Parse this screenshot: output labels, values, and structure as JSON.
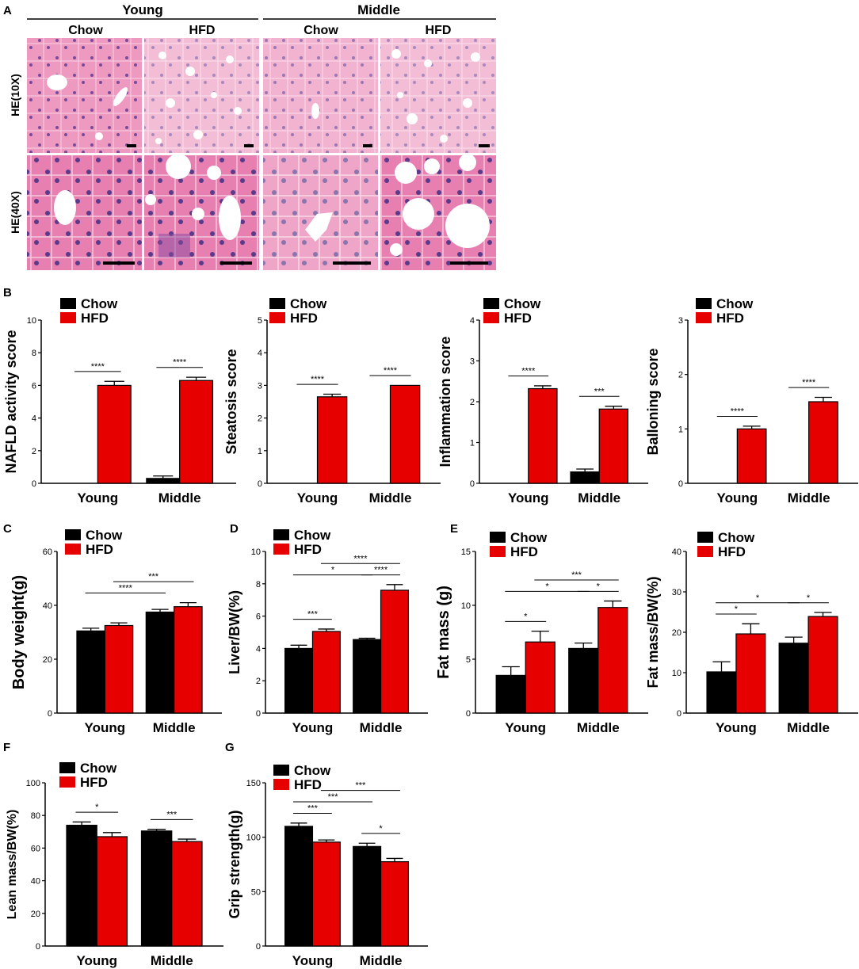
{
  "panel_letters": [
    "A",
    "B",
    "C",
    "D",
    "E",
    "F",
    "G"
  ],
  "histology": {
    "age_groups": [
      "Young",
      "Middle"
    ],
    "diets": [
      "Chow",
      "HFD"
    ],
    "row_labels": [
      "HE(10X)",
      "HE(40X)"
    ]
  },
  "legend": {
    "chow": "Chow",
    "hfd": "HFD"
  },
  "colors": {
    "chow": "#000000",
    "hfd": "#e60000",
    "tissue_pink": "#e27aa8",
    "tissue_light": "#f1c4da",
    "nuclei": "#5a3a8a"
  },
  "chart_data": [
    {
      "type": "bar",
      "panel": "B",
      "categories": [
        "Young",
        "Middle"
      ],
      "ylabel": "NAFLD activity score",
      "ylim": [
        0,
        10
      ],
      "yticks": [
        0,
        2,
        4,
        6,
        8,
        10
      ],
      "series": [
        {
          "name": "Chow",
          "values": [
            0,
            0.3
          ],
          "errors": [
            0,
            0.15
          ]
        },
        {
          "name": "HFD",
          "values": [
            6.0,
            6.3
          ],
          "errors": [
            0.25,
            0.2
          ]
        }
      ],
      "annotations": [
        {
          "label": "****",
          "from": [
            0,
            0
          ],
          "to": [
            0,
            1
          ]
        },
        {
          "label": "****",
          "from": [
            1,
            0
          ],
          "to": [
            1,
            1
          ]
        }
      ]
    },
    {
      "type": "bar",
      "panel": "B",
      "categories": [
        "Young",
        "Middle"
      ],
      "ylabel": "Steatosis score",
      "ylim": [
        0,
        5
      ],
      "yticks": [
        0,
        1,
        2,
        3,
        4,
        5
      ],
      "series": [
        {
          "name": "Chow",
          "values": [
            0,
            0
          ],
          "errors": [
            0,
            0
          ]
        },
        {
          "name": "HFD",
          "values": [
            2.65,
            3.0
          ],
          "errors": [
            0.08,
            0
          ]
        }
      ],
      "annotations": [
        {
          "label": "****",
          "from": [
            0,
            0
          ],
          "to": [
            0,
            1
          ]
        },
        {
          "label": "****",
          "from": [
            1,
            0
          ],
          "to": [
            1,
            1
          ]
        }
      ]
    },
    {
      "type": "bar",
      "panel": "B",
      "categories": [
        "Young",
        "Middle"
      ],
      "ylabel": "Inflammation score",
      "ylim": [
        0,
        4
      ],
      "yticks": [
        0,
        1,
        2,
        3,
        4
      ],
      "series": [
        {
          "name": "Chow",
          "values": [
            0,
            0.28
          ],
          "errors": [
            0,
            0.07
          ]
        },
        {
          "name": "HFD",
          "values": [
            2.32,
            1.82
          ],
          "errors": [
            0.07,
            0.07
          ]
        }
      ],
      "annotations": [
        {
          "label": "****",
          "from": [
            0,
            0
          ],
          "to": [
            0,
            1
          ]
        },
        {
          "label": "***",
          "from": [
            1,
            0
          ],
          "to": [
            1,
            1
          ]
        }
      ]
    },
    {
      "type": "bar",
      "panel": "B",
      "categories": [
        "Young",
        "Middle"
      ],
      "ylabel": "Balloning score",
      "ylim": [
        0,
        3
      ],
      "yticks": [
        0,
        1,
        2,
        3
      ],
      "series": [
        {
          "name": "Chow",
          "values": [
            0,
            0
          ],
          "errors": [
            0,
            0
          ]
        },
        {
          "name": "HFD",
          "values": [
            1.0,
            1.5
          ],
          "errors": [
            0.05,
            0.08
          ]
        }
      ],
      "annotations": [
        {
          "label": "****",
          "from": [
            0,
            0
          ],
          "to": [
            0,
            1
          ]
        },
        {
          "label": "****",
          "from": [
            1,
            0
          ],
          "to": [
            1,
            1
          ]
        }
      ]
    },
    {
      "type": "bar",
      "panel": "C",
      "categories": [
        "Young",
        "Middle"
      ],
      "ylabel": "Body weight(g)",
      "ylim": [
        0,
        60
      ],
      "yticks": [
        0,
        20,
        40,
        60
      ],
      "series": [
        {
          "name": "Chow",
          "values": [
            30.5,
            37.5
          ],
          "errors": [
            1.0,
            1.0
          ]
        },
        {
          "name": "HFD",
          "values": [
            32.5,
            39.5
          ],
          "errors": [
            1.0,
            1.5
          ]
        }
      ],
      "annotations": [
        {
          "label": "****",
          "from": [
            0,
            0
          ],
          "to": [
            1,
            0
          ]
        },
        {
          "label": "***",
          "from": [
            0,
            1
          ],
          "to": [
            1,
            1
          ]
        }
      ]
    },
    {
      "type": "bar",
      "panel": "D",
      "categories": [
        "Young",
        "Middle"
      ],
      "ylabel": "Liver/BW(%)",
      "ylim": [
        0,
        10
      ],
      "yticks": [
        0,
        2,
        4,
        6,
        8,
        10
      ],
      "series": [
        {
          "name": "Chow",
          "values": [
            4.0,
            4.55
          ],
          "errors": [
            0.2,
            0.08
          ]
        },
        {
          "name": "HFD",
          "values": [
            5.05,
            7.6
          ],
          "errors": [
            0.15,
            0.35
          ]
        }
      ],
      "annotations": [
        {
          "label": "***",
          "from": [
            0,
            0
          ],
          "to": [
            0,
            1
          ]
        },
        {
          "label": "*",
          "from": [
            0,
            0
          ],
          "to": [
            1,
            0
          ]
        },
        {
          "label": "****",
          "from": [
            1,
            0
          ],
          "to": [
            1,
            1
          ]
        },
        {
          "label": "****",
          "from": [
            0,
            1
          ],
          "to": [
            1,
            1
          ]
        }
      ]
    },
    {
      "type": "bar",
      "panel": "E",
      "categories": [
        "Young",
        "Middle"
      ],
      "ylabel": "Fat mass (g)",
      "ylim": [
        0,
        15
      ],
      "yticks": [
        0,
        5,
        10,
        15
      ],
      "series": [
        {
          "name": "Chow",
          "values": [
            3.5,
            6.0
          ],
          "errors": [
            0.8,
            0.5
          ]
        },
        {
          "name": "HFD",
          "values": [
            6.6,
            9.8
          ],
          "errors": [
            1.0,
            0.6
          ]
        }
      ],
      "annotations": [
        {
          "label": "*",
          "from": [
            0,
            0
          ],
          "to": [
            0,
            1
          ]
        },
        {
          "label": "*",
          "from": [
            0,
            0
          ],
          "to": [
            1,
            0
          ]
        },
        {
          "label": "*",
          "from": [
            1,
            0
          ],
          "to": [
            1,
            1
          ]
        },
        {
          "label": "***",
          "from": [
            0,
            1
          ],
          "to": [
            1,
            1
          ]
        }
      ]
    },
    {
      "type": "bar",
      "panel": "E",
      "categories": [
        "Young",
        "Middle"
      ],
      "ylabel": "Fat mass/BW(%)",
      "ylim": [
        0,
        40
      ],
      "yticks": [
        0,
        10,
        20,
        30,
        40
      ],
      "series": [
        {
          "name": "Chow",
          "values": [
            10.2,
            17.3
          ],
          "errors": [
            2.5,
            1.5
          ]
        },
        {
          "name": "HFD",
          "values": [
            19.6,
            23.9
          ],
          "errors": [
            2.5,
            1.0
          ]
        }
      ],
      "annotations": [
        {
          "label": "*",
          "from": [
            0,
            0
          ],
          "to": [
            0,
            1
          ]
        },
        {
          "label": "*",
          "from": [
            0,
            0
          ],
          "to": [
            1,
            0
          ]
        },
        {
          "label": "*",
          "from": [
            1,
            0
          ],
          "to": [
            1,
            1
          ]
        }
      ]
    },
    {
      "type": "bar",
      "panel": "F",
      "categories": [
        "Young",
        "Middle"
      ],
      "ylabel": "Lean mass/BW(%)",
      "ylim": [
        0,
        100
      ],
      "yticks": [
        0,
        20,
        40,
        60,
        80,
        100
      ],
      "series": [
        {
          "name": "Chow",
          "values": [
            74,
            70.5
          ],
          "errors": [
            2,
            1
          ]
        },
        {
          "name": "HFD",
          "values": [
            67,
            64
          ],
          "errors": [
            2.5,
            1.5
          ]
        }
      ],
      "annotations": [
        {
          "label": "*",
          "from": [
            0,
            0
          ],
          "to": [
            0,
            1
          ]
        },
        {
          "label": "***",
          "from": [
            1,
            0
          ],
          "to": [
            1,
            1
          ]
        }
      ]
    },
    {
      "type": "bar",
      "panel": "G",
      "categories": [
        "Young",
        "Middle"
      ],
      "ylabel": "Grip strength(g)",
      "ylim": [
        0,
        150
      ],
      "yticks": [
        0,
        50,
        100,
        150
      ],
      "series": [
        {
          "name": "Chow",
          "values": [
            110,
            91.5
          ],
          "errors": [
            3,
            3
          ]
        },
        {
          "name": "HFD",
          "values": [
            95.5,
            77.5
          ],
          "errors": [
            2,
            3
          ]
        }
      ],
      "annotations": [
        {
          "label": "***",
          "from": [
            0,
            0
          ],
          "to": [
            0,
            1
          ]
        },
        {
          "label": "***",
          "from": [
            0,
            0
          ],
          "to": [
            1,
            0
          ]
        },
        {
          "label": "***",
          "from": [
            0,
            1
          ],
          "to": [
            1,
            1
          ]
        },
        {
          "label": "*",
          "from": [
            1,
            0
          ],
          "to": [
            1,
            1
          ]
        }
      ]
    }
  ]
}
